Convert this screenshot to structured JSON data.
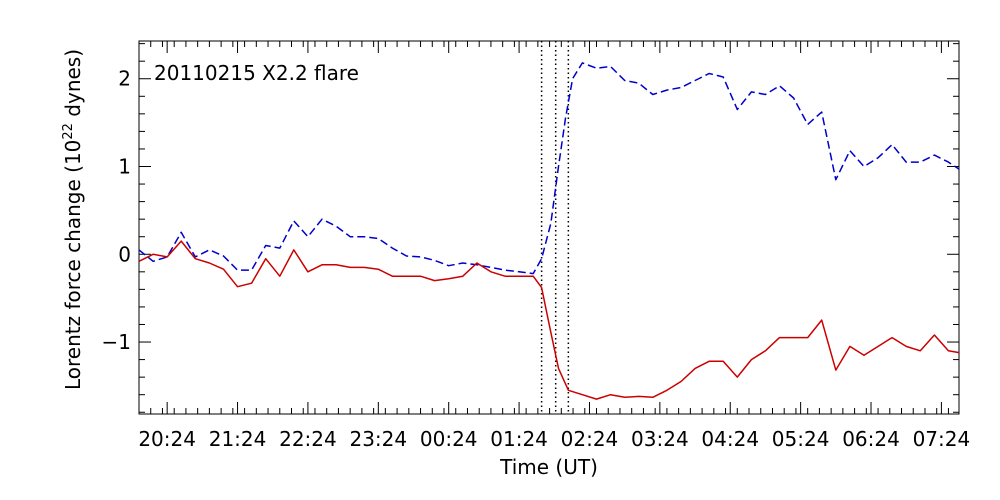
{
  "chart_data": {
    "type": "line",
    "annotation": "20110215  X2.2 flare",
    "xlabel": "Time (UT)",
    "ylabel": "Lorentz force change (10²² dynes)",
    "ylabel_parts": {
      "prefix": "Lorentz force change (10",
      "exponent": "22",
      "suffix": " dynes)"
    },
    "x_tick_labels": [
      "20:24",
      "21:24",
      "22:24",
      "23:24",
      "00:24",
      "01:24",
      "02:24",
      "03:24",
      "04:24",
      "05:24",
      "06:24",
      "07:24"
    ],
    "x_tick_hours": [
      0.4,
      1.4,
      2.4,
      3.4,
      4.4,
      5.4,
      6.4,
      7.4,
      8.4,
      9.4,
      10.4,
      11.4
    ],
    "x_unit": "hours after 20:00 UT (2011-02-14)",
    "xlim": [
      0.0,
      11.65
    ],
    "y_ticks": [
      2,
      1,
      0,
      -1
    ],
    "y_tick_labels": [
      "2",
      "1",
      "0",
      "−1"
    ],
    "ylim": [
      -1.82,
      2.43
    ],
    "vertical_markers": [
      5.72,
      5.92,
      6.1
    ],
    "series": [
      {
        "style": "dashed",
        "color": "#0000cc",
        "x": [
          0.0,
          0.2,
          0.4,
          0.6,
          0.8,
          1.0,
          1.2,
          1.4,
          1.6,
          1.8,
          2.0,
          2.2,
          2.4,
          2.6,
          2.8,
          3.0,
          3.2,
          3.4,
          3.6,
          3.8,
          4.0,
          4.2,
          4.4,
          4.6,
          4.8,
          5.0,
          5.2,
          5.4,
          5.6,
          5.72,
          5.85,
          5.96,
          6.06,
          6.16,
          6.3,
          6.5,
          6.7,
          6.9,
          7.1,
          7.3,
          7.5,
          7.7,
          7.9,
          8.1,
          8.3,
          8.5,
          8.7,
          8.9,
          9.1,
          9.3,
          9.5,
          9.7,
          9.9,
          10.1,
          10.3,
          10.5,
          10.7,
          10.9,
          11.1,
          11.3,
          11.5,
          11.65
        ],
        "y": [
          0.05,
          -0.08,
          -0.03,
          0.25,
          -0.03,
          0.05,
          -0.02,
          -0.18,
          -0.18,
          0.1,
          0.07,
          0.38,
          0.2,
          0.4,
          0.32,
          0.2,
          0.2,
          0.18,
          0.07,
          -0.02,
          -0.03,
          -0.07,
          -0.13,
          -0.1,
          -0.12,
          -0.15,
          -0.18,
          -0.2,
          -0.22,
          -0.05,
          0.35,
          1.0,
          1.55,
          2.0,
          2.18,
          2.12,
          2.14,
          1.98,
          1.95,
          1.82,
          1.87,
          1.9,
          1.98,
          2.06,
          2.02,
          1.65,
          1.85,
          1.82,
          1.92,
          1.78,
          1.48,
          1.62,
          0.85,
          1.18,
          1.0,
          1.1,
          1.25,
          1.05,
          1.05,
          1.13,
          1.05,
          0.97
        ]
      },
      {
        "style": "solid",
        "color": "#cc0000",
        "x": [
          0.0,
          0.2,
          0.4,
          0.6,
          0.8,
          1.0,
          1.2,
          1.4,
          1.6,
          1.8,
          2.0,
          2.2,
          2.4,
          2.6,
          2.8,
          3.0,
          3.2,
          3.4,
          3.6,
          3.8,
          4.0,
          4.2,
          4.4,
          4.6,
          4.8,
          5.0,
          5.2,
          5.4,
          5.6,
          5.72,
          5.84,
          5.96,
          6.1,
          6.3,
          6.5,
          6.7,
          6.9,
          7.1,
          7.3,
          7.5,
          7.7,
          7.9,
          8.1,
          8.3,
          8.5,
          8.7,
          8.9,
          9.1,
          9.3,
          9.5,
          9.7,
          9.9,
          10.1,
          10.3,
          10.5,
          10.7,
          10.9,
          11.1,
          11.3,
          11.5,
          11.65
        ],
        "y": [
          -0.08,
          0.0,
          -0.03,
          0.15,
          -0.05,
          -0.1,
          -0.17,
          -0.37,
          -0.33,
          -0.05,
          -0.25,
          0.05,
          -0.2,
          -0.12,
          -0.12,
          -0.15,
          -0.15,
          -0.17,
          -0.25,
          -0.25,
          -0.25,
          -0.3,
          -0.28,
          -0.25,
          -0.1,
          -0.2,
          -0.25,
          -0.25,
          -0.25,
          -0.38,
          -0.85,
          -1.3,
          -1.55,
          -1.6,
          -1.65,
          -1.6,
          -1.63,
          -1.62,
          -1.63,
          -1.55,
          -1.45,
          -1.3,
          -1.22,
          -1.22,
          -1.4,
          -1.2,
          -1.1,
          -0.95,
          -0.95,
          -0.95,
          -0.75,
          -1.32,
          -1.05,
          -1.15,
          -1.05,
          -0.95,
          -1.05,
          -1.1,
          -0.92,
          -1.1,
          -1.12
        ]
      }
    ]
  }
}
